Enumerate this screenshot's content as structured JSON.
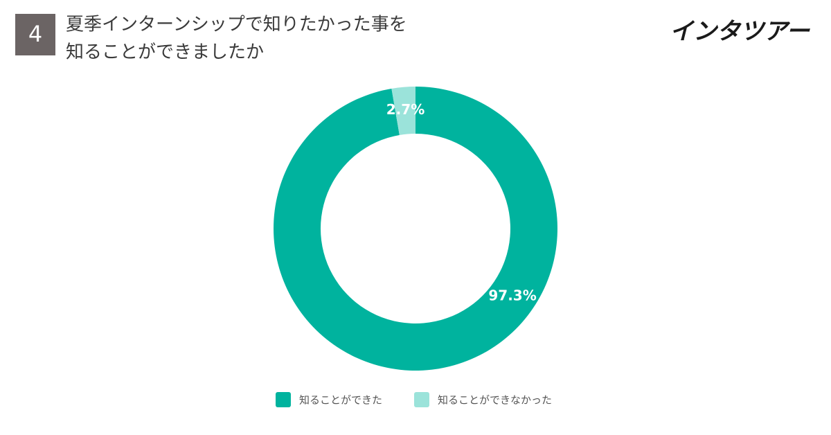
{
  "question_number": "4",
  "logo": "インタツアー",
  "chart_data": {
    "type": "pie",
    "donut": true,
    "title": [
      "夏季インターンシップで知りたかった事を",
      "知ることができましたか"
    ],
    "categories": [
      "知ることができた",
      "知ることができなかった"
    ],
    "values": [
      97.3,
      2.7
    ],
    "value_labels": [
      "97.3%",
      "2.7%"
    ],
    "colors": [
      "#00b39e",
      "#9be3da"
    ],
    "legend": "bottom"
  }
}
